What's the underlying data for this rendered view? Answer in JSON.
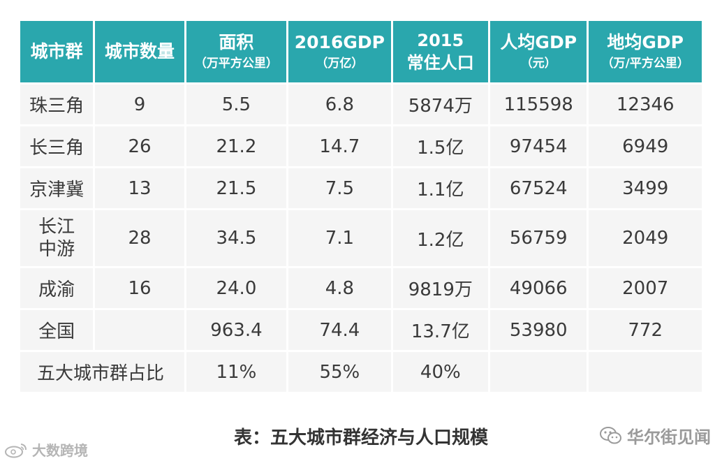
{
  "headers": [
    {
      "main": "城市群",
      "sub": ""
    },
    {
      "main": "城市数量",
      "sub": ""
    },
    {
      "main": "面积",
      "sub": "（万平方公里）"
    },
    {
      "main": "2016GDP",
      "sub": "（万亿）"
    },
    {
      "main": "2015",
      "sub": "常住人口"
    },
    {
      "main": "人均GDP",
      "sub": "（元）"
    },
    {
      "main": "地均GDP",
      "sub": "（万/平方公里）"
    }
  ],
  "rows": [
    {
      "name": "珠三角",
      "count": "9",
      "area": "5.5",
      "gdp": "6.8",
      "pop": "5874万",
      "gdp_per_capita": "115598",
      "gdp_per_area": "12346"
    },
    {
      "name": "长三角",
      "count": "26",
      "area": "21.2",
      "gdp": "14.7",
      "pop": "1.5亿",
      "gdp_per_capita": "97454",
      "gdp_per_area": "6949"
    },
    {
      "name": "京津冀",
      "count": "13",
      "area": "21.5",
      "gdp": "7.5",
      "pop": "1.1亿",
      "gdp_per_capita": "67524",
      "gdp_per_area": "3499"
    },
    {
      "name_line1": "长江",
      "name_line2": "中游",
      "count": "28",
      "area": "34.5",
      "gdp": "7.1",
      "pop": "1.2亿",
      "gdp_per_capita": "56759",
      "gdp_per_area": "2049"
    },
    {
      "name": "成渝",
      "count": "16",
      "area": "24.0",
      "gdp": "4.8",
      "pop": "9819万",
      "gdp_per_capita": "49066",
      "gdp_per_area": "2007"
    },
    {
      "name": "全国",
      "count": "",
      "area": "963.4",
      "gdp": "74.4",
      "pop": "13.7亿",
      "gdp_per_capita": "53980",
      "gdp_per_area": "772"
    }
  ],
  "share_row": {
    "label": "五大城市群占比",
    "area": "11%",
    "gdp": "55%",
    "pop": "40%"
  },
  "caption": "表：五大城市群经济与人口规模",
  "watermark_right": "华尔街见闻",
  "watermark_left": "大数跨境",
  "icons": {
    "right": "wechat-icon",
    "left": "weibo-icon"
  }
}
